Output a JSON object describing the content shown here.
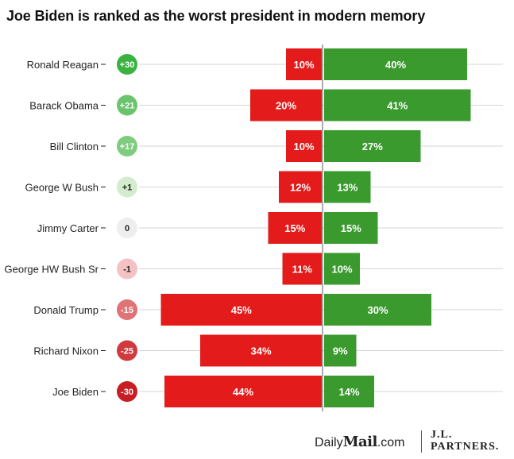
{
  "chart_data": {
    "type": "diverging-bar",
    "title": "Joe Biden is ranked as the worst president in modern memory",
    "series": [
      {
        "name": "negative",
        "color": "#e31b1b"
      },
      {
        "name": "positive",
        "color": "#3a9a2e"
      }
    ],
    "categories": [
      "Ronald Reagan",
      "Barack Obama",
      "Bill Clinton",
      "George W Bush",
      "Jimmy Carter",
      "George HW Bush Sr",
      "Donald Trump",
      "Richard Nixon",
      "Joe Biden"
    ],
    "negative": [
      10,
      20,
      10,
      12,
      15,
      11,
      45,
      34,
      44
    ],
    "positive": [
      40,
      41,
      27,
      13,
      15,
      10,
      30,
      9,
      14
    ],
    "negative_labels": [
      "10%",
      "20%",
      "10%",
      "12%",
      "15%",
      "11%",
      "45%",
      "34%",
      "44%"
    ],
    "positive_labels": [
      "40%",
      "41%",
      "27%",
      "13%",
      "15%",
      "10%",
      "30%",
      "9%",
      "14%"
    ],
    "net": [
      30,
      21,
      17,
      1,
      0,
      -1,
      -15,
      -25,
      -30
    ],
    "net_labels": [
      "+30",
      "+21",
      "+17",
      "+1",
      "0",
      "-1",
      "-15",
      "-25",
      "-30"
    ],
    "range": [
      -50,
      50
    ]
  },
  "footer": {
    "dailymail_prefix": "Daily",
    "dailymail_brand": "Mail",
    "dailymail_suffix": ".com",
    "jl_line1": "J.L.",
    "jl_line2": "PARTNERS."
  }
}
